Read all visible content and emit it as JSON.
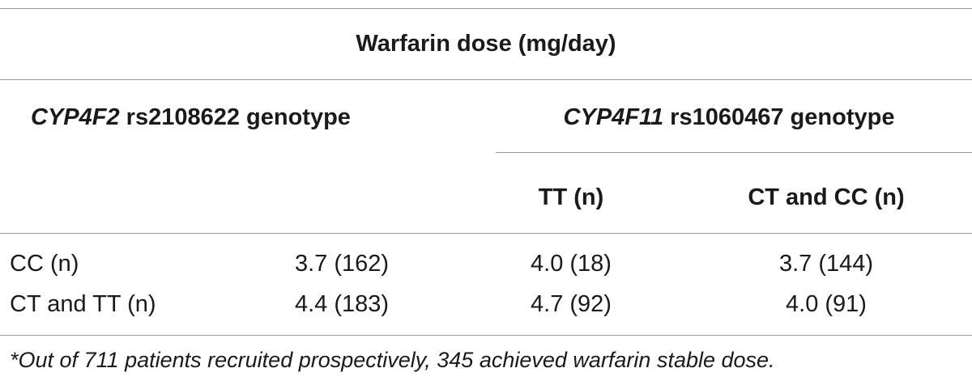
{
  "title": "Warfarin dose (mg/day)",
  "group_headers": {
    "cyp4f2": {
      "gene": "CYP4F2",
      "rest": " rs2108622 genotype"
    },
    "cyp4f11": {
      "gene": "CYP4F11",
      "rest": " rs1060467 genotype"
    }
  },
  "subheaders": [
    "TT (n)",
    "CT and CC (n)"
  ],
  "rows": [
    {
      "label": "CC (n)",
      "overall": "3.7 (162)",
      "tt": "4.0 (18)",
      "ct_cc": "3.7 (144)"
    },
    {
      "label": "CT and TT (n)",
      "overall": "4.4 (183)",
      "tt": "4.7 (92)",
      "ct_cc": "4.0 (91)"
    }
  ],
  "footnote": "*Out of 711 patients recruited prospectively, 345 achieved warfarin stable dose."
}
